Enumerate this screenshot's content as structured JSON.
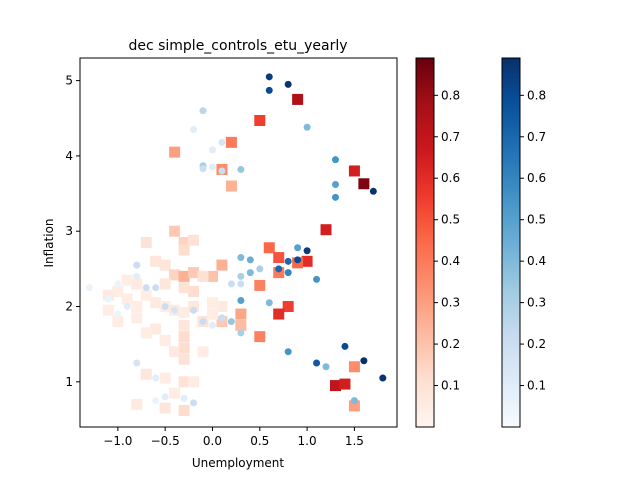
{
  "chart_data": {
    "type": "scatter",
    "title": "dec simple_controls_etu_yearly",
    "xlabel": "Unemployment",
    "ylabel": "Inflation",
    "xlim": [
      -1.4,
      1.95
    ],
    "ylim": [
      0.4,
      5.3
    ],
    "xticks": [
      -1.0,
      -0.5,
      0.0,
      0.5,
      1.0,
      1.5
    ],
    "xtick_labels": [
      "−1.0",
      "−0.5",
      "0.0",
      "0.5",
      "1.0",
      "1.5"
    ],
    "yticks": [
      1,
      2,
      3,
      4,
      5
    ],
    "ytick_labels": [
      "1",
      "2",
      "3",
      "4",
      "5"
    ],
    "grid": false,
    "colorbars": [
      {
        "cmap": "Reds",
        "range": [
          0.0,
          0.89
        ],
        "ticks": [
          0.1,
          0.2,
          0.3,
          0.4,
          0.5,
          0.6,
          0.7,
          0.8
        ],
        "tick_labels": [
          "0.1",
          "0.2",
          "0.3",
          "0.4",
          "0.5",
          "0.6",
          "0.7",
          "0.8"
        ]
      },
      {
        "cmap": "Blues",
        "range": [
          0.0,
          0.89
        ],
        "ticks": [
          0.1,
          0.2,
          0.3,
          0.4,
          0.5,
          0.6,
          0.7,
          0.8
        ],
        "tick_labels": [
          "0.1",
          "0.2",
          "0.3",
          "0.4",
          "0.5",
          "0.6",
          "0.7",
          "0.8"
        ]
      }
    ],
    "series": [
      {
        "marker": "square",
        "cmap": "Reds",
        "points": [
          [
            0.9,
            4.75,
            0.75
          ],
          [
            0.5,
            4.47,
            0.55
          ],
          [
            0.2,
            4.18,
            0.4
          ],
          [
            -0.4,
            4.05,
            0.3
          ],
          [
            0.1,
            3.82,
            0.35
          ],
          [
            0.2,
            3.6,
            0.25
          ],
          [
            1.5,
            3.8,
            0.65
          ],
          [
            1.6,
            3.63,
            0.85
          ],
          [
            1.2,
            3.02,
            0.65
          ],
          [
            0.6,
            2.78,
            0.45
          ],
          [
            0.7,
            2.65,
            0.5
          ],
          [
            1.0,
            2.6,
            0.6
          ],
          [
            0.9,
            2.58,
            0.45
          ],
          [
            0.7,
            2.45,
            0.4
          ],
          [
            0.5,
            2.28,
            0.38
          ],
          [
            0.8,
            2.0,
            0.55
          ],
          [
            0.7,
            1.9,
            0.6
          ],
          [
            0.5,
            1.6,
            0.38
          ],
          [
            0.3,
            1.9,
            0.28
          ],
          [
            0.3,
            1.75,
            0.22
          ],
          [
            0.1,
            1.8,
            0.18
          ],
          [
            0.1,
            2.55,
            0.25
          ],
          [
            0.0,
            2.4,
            0.2
          ],
          [
            1.3,
            0.95,
            0.7
          ],
          [
            1.4,
            0.97,
            0.65
          ],
          [
            1.5,
            1.2,
            0.35
          ],
          [
            1.5,
            0.68,
            0.3
          ],
          [
            -0.4,
            3.0,
            0.18
          ],
          [
            -0.3,
            2.85,
            0.15
          ],
          [
            -0.2,
            2.88,
            0.1
          ],
          [
            -0.7,
            2.85,
            0.1
          ],
          [
            -0.6,
            2.6,
            0.08
          ],
          [
            -0.5,
            2.55,
            0.08
          ],
          [
            -0.3,
            2.75,
            0.12
          ],
          [
            -0.4,
            2.42,
            0.15
          ],
          [
            -0.3,
            2.4,
            0.25
          ],
          [
            -0.2,
            2.45,
            0.18
          ],
          [
            -0.1,
            2.4,
            0.1
          ],
          [
            -0.2,
            2.2,
            0.12
          ],
          [
            -0.3,
            2.25,
            0.1
          ],
          [
            -0.5,
            2.3,
            0.08
          ],
          [
            -0.8,
            2.3,
            0.06
          ],
          [
            -0.9,
            2.35,
            0.05
          ],
          [
            -1.0,
            2.2,
            0.05
          ],
          [
            -1.1,
            2.15,
            0.06
          ],
          [
            -0.9,
            2.1,
            0.04
          ],
          [
            -0.8,
            2.0,
            0.05
          ],
          [
            -0.7,
            2.15,
            0.05
          ],
          [
            -0.6,
            2.05,
            0.06
          ],
          [
            -0.5,
            2.0,
            0.05
          ],
          [
            -0.4,
            1.95,
            0.06
          ],
          [
            -0.3,
            1.92,
            0.05
          ],
          [
            -0.2,
            2.0,
            0.07
          ],
          [
            0.0,
            2.05,
            0.05
          ],
          [
            0.1,
            2.0,
            0.06
          ],
          [
            -0.1,
            1.8,
            0.1
          ],
          [
            0.0,
            1.9,
            0.05
          ],
          [
            -0.3,
            1.75,
            0.08
          ],
          [
            -0.6,
            1.7,
            0.06
          ],
          [
            -0.7,
            1.65,
            0.05
          ],
          [
            -0.5,
            1.55,
            0.05
          ],
          [
            -0.3,
            1.6,
            0.12
          ],
          [
            -0.3,
            1.45,
            0.12
          ],
          [
            -0.4,
            1.4,
            0.06
          ],
          [
            -0.1,
            1.4,
            0.04
          ],
          [
            -0.3,
            1.3,
            0.1
          ],
          [
            -1.0,
            1.8,
            0.05
          ],
          [
            -0.8,
            1.85,
            0.04
          ],
          [
            -1.1,
            1.95,
            0.04
          ],
          [
            -0.7,
            1.1,
            0.08
          ],
          [
            -0.5,
            1.05,
            0.05
          ],
          [
            -0.3,
            1.0,
            0.1
          ],
          [
            -0.2,
            1.0,
            0.05
          ],
          [
            -0.4,
            0.85,
            0.05
          ],
          [
            -0.8,
            0.7,
            0.06
          ],
          [
            -0.3,
            0.62,
            0.12
          ],
          [
            -0.5,
            0.65,
            0.08
          ]
        ]
      },
      {
        "marker": "circle",
        "cmap": "Blues",
        "points": [
          [
            0.6,
            5.05,
            0.85
          ],
          [
            0.8,
            4.95,
            0.88
          ],
          [
            0.6,
            4.87,
            0.8
          ],
          [
            -0.1,
            4.6,
            0.25
          ],
          [
            -0.2,
            4.35,
            0.1
          ],
          [
            1.0,
            4.38,
            0.4
          ],
          [
            0.1,
            4.18,
            0.15
          ],
          [
            0.0,
            4.08,
            0.1
          ],
          [
            -0.1,
            3.87,
            0.3
          ],
          [
            -0.1,
            3.83,
            0.2
          ],
          [
            0.0,
            3.85,
            0.1
          ],
          [
            0.3,
            3.82,
            0.35
          ],
          [
            0.1,
            3.8,
            0.2
          ],
          [
            1.3,
            3.95,
            0.55
          ],
          [
            1.3,
            3.62,
            0.5
          ],
          [
            1.3,
            3.45,
            0.55
          ],
          [
            1.7,
            3.53,
            0.88
          ],
          [
            1.0,
            2.74,
            0.85
          ],
          [
            0.9,
            2.78,
            0.5
          ],
          [
            0.9,
            2.62,
            0.8
          ],
          [
            0.8,
            2.6,
            0.7
          ],
          [
            0.7,
            2.5,
            0.7
          ],
          [
            0.8,
            2.45,
            0.6
          ],
          [
            1.1,
            2.36,
            0.55
          ],
          [
            0.3,
            2.65,
            0.4
          ],
          [
            0.4,
            2.62,
            0.45
          ],
          [
            0.5,
            2.5,
            0.3
          ],
          [
            0.4,
            2.45,
            0.4
          ],
          [
            0.3,
            2.4,
            0.3
          ],
          [
            0.3,
            2.3,
            0.2
          ],
          [
            0.2,
            2.3,
            0.2
          ],
          [
            0.6,
            2.05,
            0.4
          ],
          [
            0.3,
            2.08,
            0.5
          ],
          [
            0.2,
            1.8,
            0.35
          ],
          [
            0.3,
            1.65,
            0.3
          ],
          [
            0.1,
            1.85,
            0.2
          ],
          [
            0.0,
            1.75,
            0.1
          ],
          [
            -0.1,
            1.8,
            0.2
          ],
          [
            -0.2,
            1.95,
            0.2
          ],
          [
            -0.4,
            1.95,
            0.15
          ],
          [
            -0.5,
            2.0,
            0.2
          ],
          [
            -0.6,
            2.25,
            0.2
          ],
          [
            -0.7,
            2.25,
            0.2
          ],
          [
            -0.8,
            2.55,
            0.2
          ],
          [
            -0.8,
            2.4,
            0.1
          ],
          [
            -1.0,
            2.3,
            0.05
          ],
          [
            -1.1,
            2.1,
            0.05
          ],
          [
            -1.3,
            2.25,
            0.05
          ],
          [
            -0.9,
            2.0,
            0.1
          ],
          [
            -1.0,
            1.9,
            0.05
          ],
          [
            0.8,
            1.4,
            0.55
          ],
          [
            1.1,
            1.25,
            0.75
          ],
          [
            1.2,
            1.2,
            0.4
          ],
          [
            1.4,
            1.47,
            0.8
          ],
          [
            1.6,
            1.28,
            0.9
          ],
          [
            1.8,
            1.05,
            0.88
          ],
          [
            1.5,
            0.75,
            0.4
          ],
          [
            -0.8,
            1.25,
            0.15
          ],
          [
            -0.6,
            1.05,
            0.1
          ],
          [
            -0.5,
            0.8,
            0.1
          ],
          [
            -0.6,
            0.75,
            0.05
          ],
          [
            -0.2,
            0.72,
            0.2
          ],
          [
            -0.3,
            0.78,
            0.1
          ]
        ]
      }
    ]
  }
}
